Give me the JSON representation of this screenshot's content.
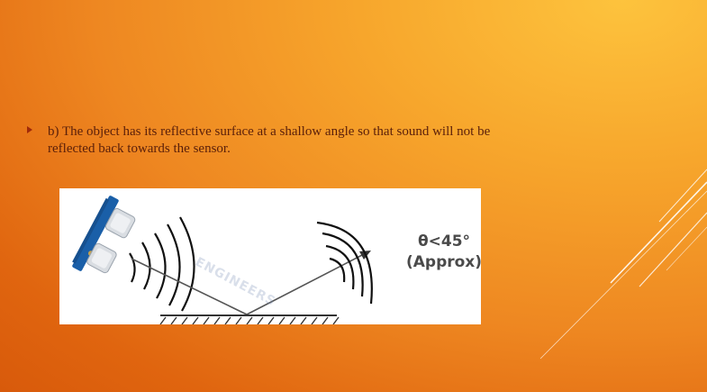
{
  "slide": {
    "bullet_text": "b) The object has its reflective surface at a shallow angle so that sound will not be reflected back towards the sensor."
  },
  "figure": {
    "angle_label": "θ<45°",
    "angle_note": "(Approx)",
    "watermark": "ENGINEERS",
    "colors": {
      "sensor_board": "#1a5fa8",
      "transducer": "#d9dde2",
      "wave": "#111111",
      "ray": "#555555"
    }
  },
  "decor": {
    "accent_line_color": "#ffffff"
  }
}
